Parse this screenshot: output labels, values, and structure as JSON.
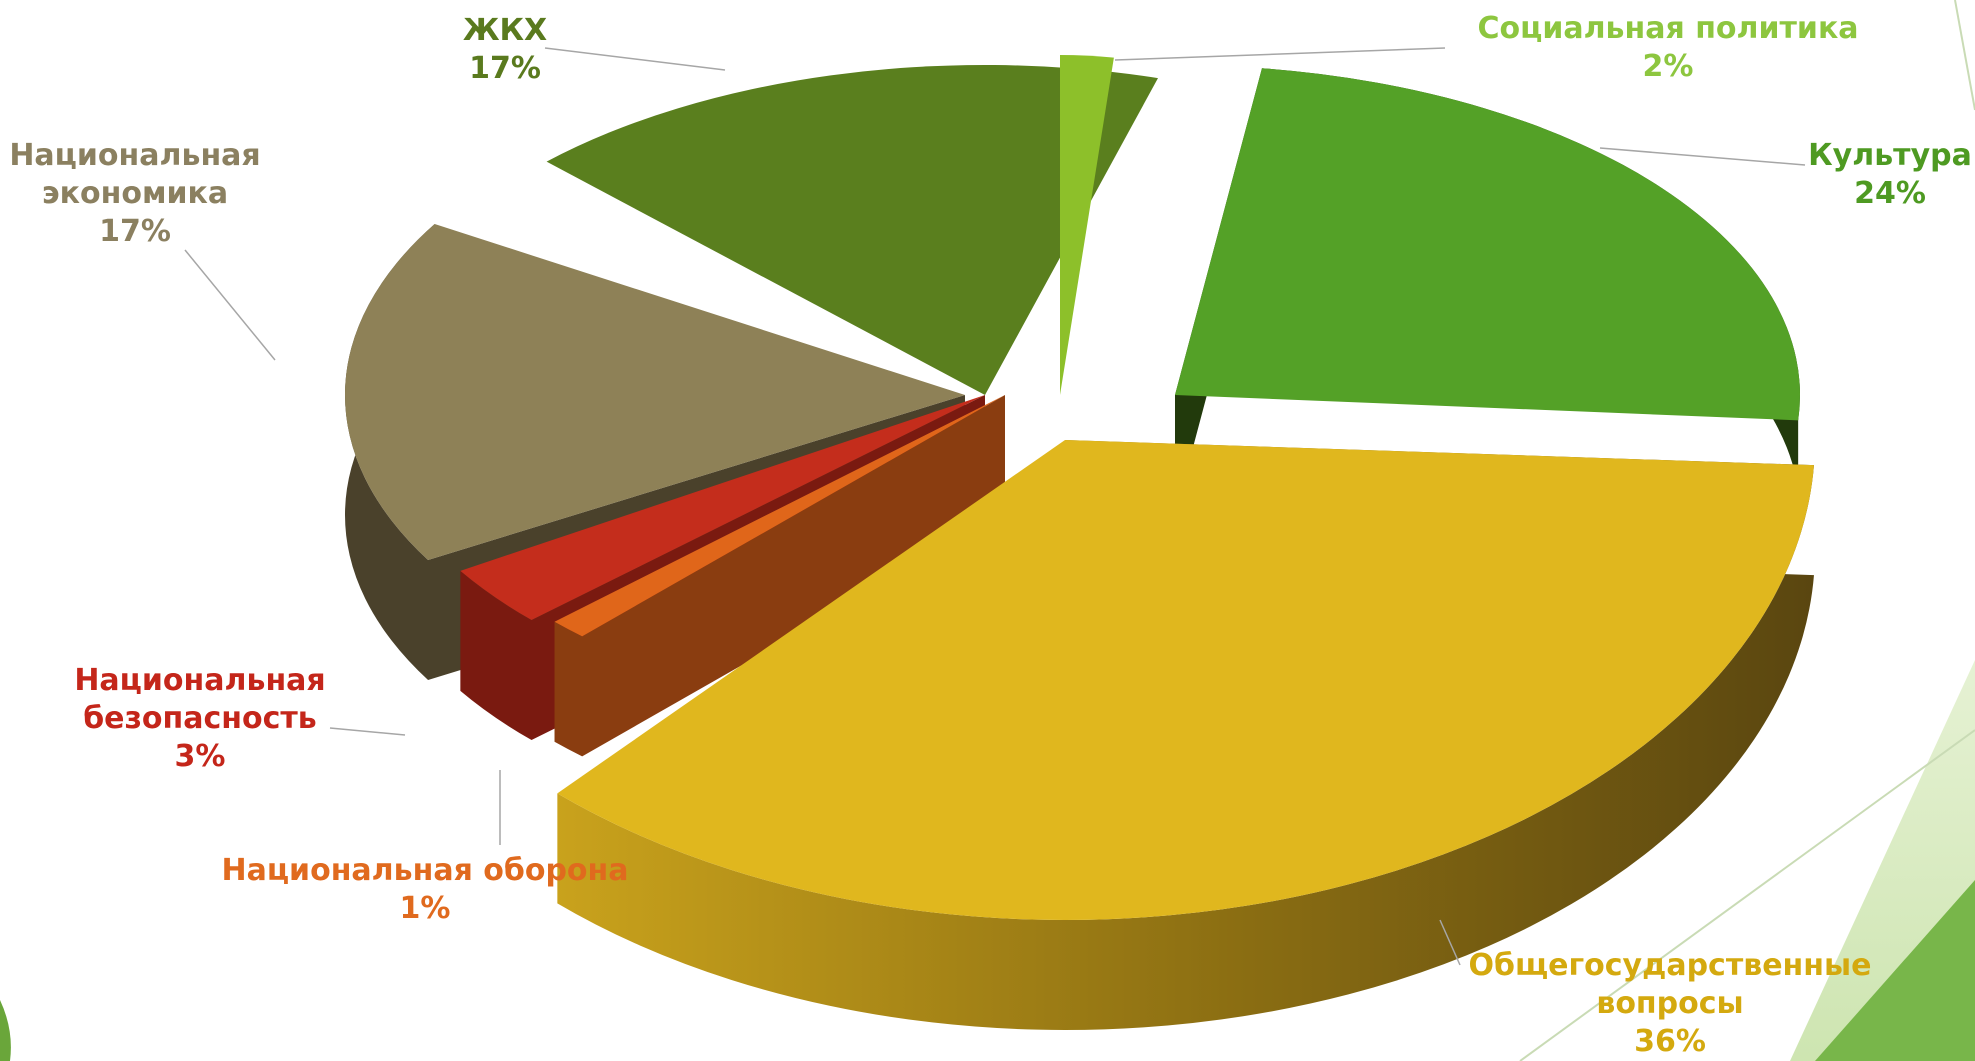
{
  "chart_data": {
    "type": "pie",
    "title": "",
    "slices": [
      {
        "label": "ЖКХ",
        "percent_label": "17%",
        "value": 17,
        "color": "#5a7f1e",
        "label_color": "#5a7a1e"
      },
      {
        "label": "Социальная политика",
        "percent_label": "2%",
        "value": 2,
        "color": "#8dc02a",
        "label_color": "#8dc63f"
      },
      {
        "label": "Культура",
        "percent_label": "24%",
        "value": 24,
        "color": "#54a127",
        "label_color": "#4e9a22"
      },
      {
        "label": "Общегосударственные вопросы",
        "percent_label": "36%",
        "value": 36,
        "color": "#e0b71e",
        "label_color": "#d4a90f"
      },
      {
        "label": "Национальная оборона",
        "percent_label": "1%",
        "value": 1,
        "color": "#e0661a",
        "label_color": "#e06a1e"
      },
      {
        "label": "Национальная безопасность",
        "percent_label": "3%",
        "value": 3,
        "color": "#c42d1c",
        "label_color": "#c4261a"
      },
      {
        "label": "Национальная экономика",
        "percent_label": "17%",
        "value": 17,
        "color": "#8e8157",
        "label_color": "#8b8060"
      }
    ],
    "legend": "none",
    "data_labels": "outside with leader lines"
  }
}
